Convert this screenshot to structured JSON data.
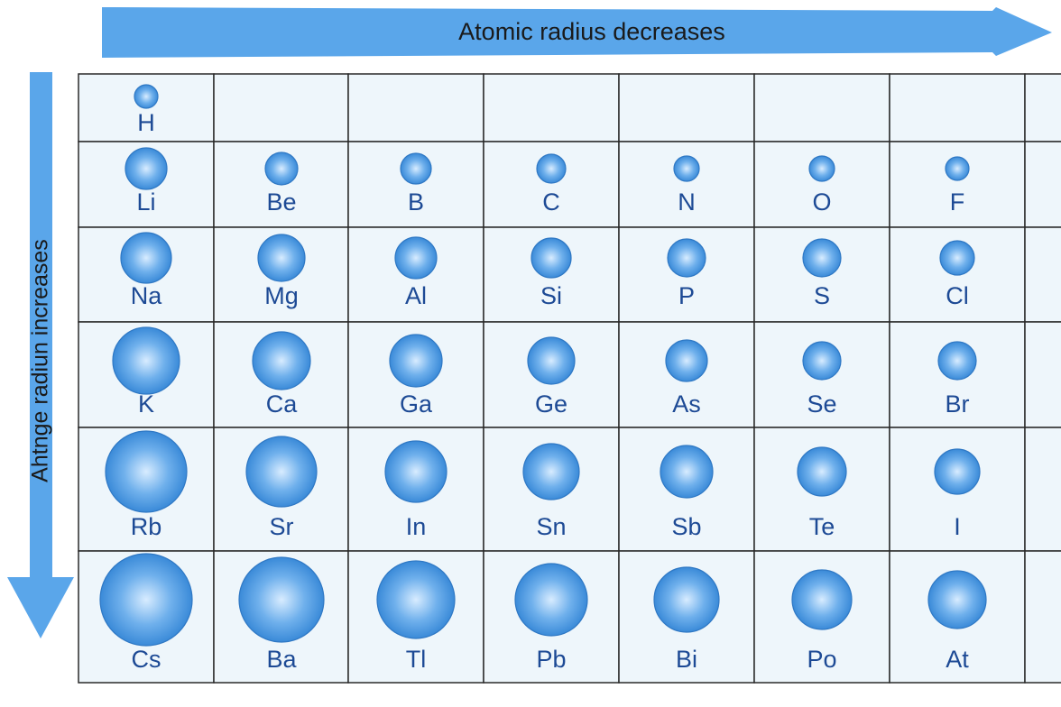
{
  "top_arrow": {
    "label": "Atomic radius decreases"
  },
  "side_arrow": {
    "label": "Ahtnge radiun increases"
  },
  "table": {
    "rows": [
      [
        "H"
      ],
      [
        "Li",
        "Be",
        "B",
        "C",
        "N",
        "O",
        "F"
      ],
      [
        "Na",
        "Mg",
        "Al",
        "Si",
        "P",
        "S",
        "Cl"
      ],
      [
        "K",
        "Ca",
        "Ga",
        "Ge",
        "As",
        "Se",
        "Br"
      ],
      [
        "Rb",
        "Sr",
        "In",
        "Sn",
        "Sb",
        "Te",
        "I"
      ],
      [
        "Cs",
        "Ba",
        "Tl",
        "Pb",
        "Bi",
        "Po",
        "At"
      ]
    ]
  }
}
